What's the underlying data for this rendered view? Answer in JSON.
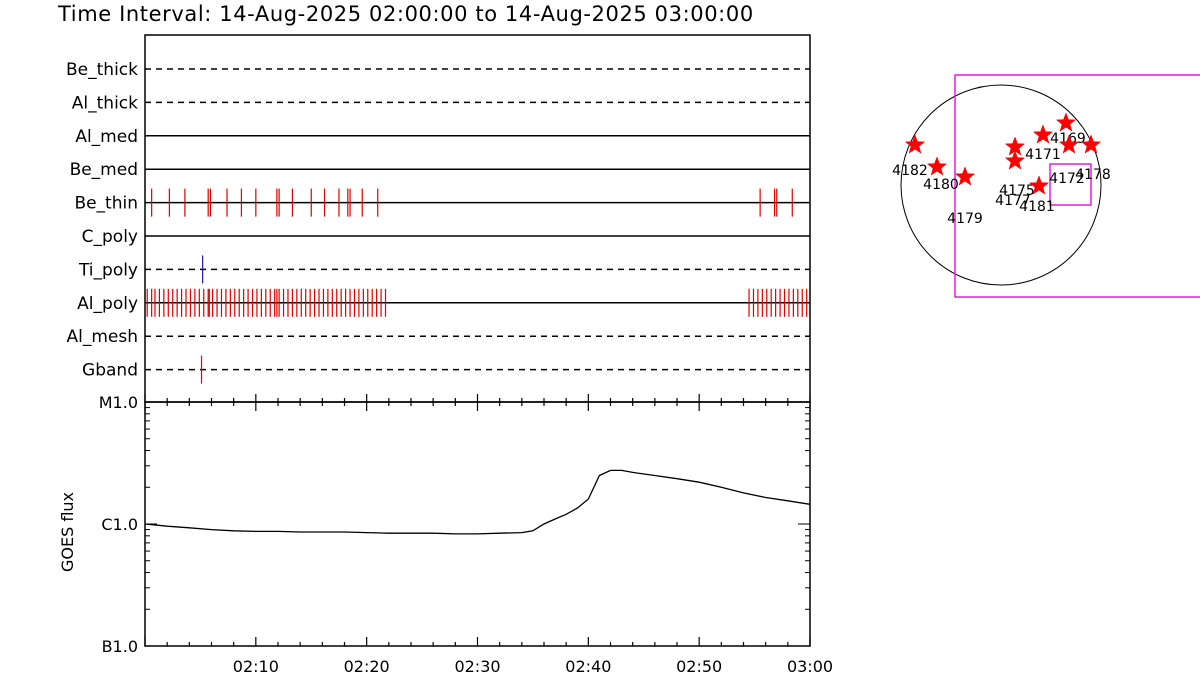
{
  "title": "Time Interval: 14-Aug-2025 02:00:00 to 14-Aug-2025 03:00:00",
  "colors": {
    "axes": "#000000",
    "event_red": "#dd0000",
    "event_blue": "#1a1ab0",
    "fov_magenta": "#e020e0",
    "star": "#ff0000"
  },
  "chart_data": [
    {
      "type": "event-raster",
      "title": "",
      "x_range_minutes": [
        0,
        60
      ],
      "x_start": "02:00",
      "x_end": "03:00",
      "filters": [
        {
          "name": "Be_thick",
          "line": "dashed",
          "events": []
        },
        {
          "name": "Al_thick",
          "line": "dashed",
          "events": []
        },
        {
          "name": "Al_med",
          "line": "solid",
          "events": []
        },
        {
          "name": "Be_med",
          "line": "solid",
          "events": []
        },
        {
          "name": "Be_thin",
          "line": "solid",
          "color": "red",
          "events": [
            0.6,
            2.2,
            3.6,
            5.7,
            5.9,
            7.4,
            8.7,
            10.0,
            11.9,
            12.1,
            13.3,
            15.0,
            16.2,
            17.5,
            18.3,
            18.5,
            19.6,
            21.0,
            55.5,
            56.8,
            57.0,
            58.4
          ]
        },
        {
          "name": "C_poly",
          "line": "solid",
          "events": []
        },
        {
          "name": "Ti_poly",
          "line": "dashed",
          "color": "blue",
          "events": [
            5.2
          ]
        },
        {
          "name": "Al_poly",
          "line": "solid",
          "color": "red",
          "events": [
            0.2,
            0.6,
            0.9,
            1.3,
            1.7,
            2.1,
            2.5,
            2.9,
            3.3,
            3.7,
            4.1,
            4.5,
            4.9,
            5.3,
            5.7,
            5.8,
            6.1,
            6.5,
            6.9,
            7.3,
            7.7,
            8.1,
            8.5,
            8.9,
            9.3,
            9.7,
            10.1,
            10.5,
            10.9,
            11.3,
            11.7,
            11.9,
            12.1,
            12.5,
            12.9,
            13.3,
            13.7,
            14.1,
            14.5,
            14.9,
            15.3,
            15.7,
            16.1,
            16.5,
            16.9,
            17.3,
            17.7,
            18.1,
            18.5,
            18.9,
            19.3,
            19.7,
            20.1,
            20.5,
            20.9,
            21.3,
            21.7,
            54.5,
            54.9,
            55.3,
            55.7,
            56.1,
            56.5,
            56.9,
            57.3,
            57.7,
            58.1,
            58.5,
            58.9,
            59.3,
            59.7
          ]
        },
        {
          "name": "Al_mesh",
          "line": "dashed",
          "events": []
        },
        {
          "name": "Gband",
          "line": "dashed",
          "color": "red",
          "events": [
            5.1
          ]
        }
      ]
    },
    {
      "type": "line",
      "title": "",
      "ylabel": "GOES flux",
      "ylog": true,
      "yticks": [
        {
          "label": "B1.0",
          "value": 1e-07
        },
        {
          "label": "C1.0",
          "value": 1e-06
        },
        {
          "label": "M1.0",
          "value": 1e-05
        }
      ],
      "ylim": [
        1e-07,
        1e-05
      ],
      "x_range_minutes": [
        0,
        60
      ],
      "xtick_labels": [
        {
          "minute": 10,
          "label": "02:10"
        },
        {
          "minute": 20,
          "label": "02:20"
        },
        {
          "minute": 30,
          "label": "02:30"
        },
        {
          "minute": 40,
          "label": "02:40"
        },
        {
          "minute": 50,
          "label": "02:50"
        },
        {
          "minute": 60,
          "label": "03:00"
        }
      ],
      "series": [
        {
          "x": [
            0,
            2,
            4,
            6,
            8,
            10,
            12,
            14,
            16,
            18,
            20,
            22,
            24,
            26,
            28,
            30,
            32,
            34,
            35,
            36,
            37,
            38,
            39,
            40,
            41,
            42,
            43,
            44,
            46,
            48,
            50,
            52,
            54,
            56,
            58,
            60
          ],
          "y": [
            1e-06,
            9.6e-07,
            9.3e-07,
            9e-07,
            8.8e-07,
            8.7e-07,
            8.7e-07,
            8.6e-07,
            8.6e-07,
            8.6e-07,
            8.5e-07,
            8.4e-07,
            8.4e-07,
            8.4e-07,
            8.3e-07,
            8.3e-07,
            8.4e-07,
            8.5e-07,
            8.8e-07,
            1e-06,
            1.1e-06,
            1.2e-06,
            1.35e-06,
            1.6e-06,
            2.5e-06,
            2.75e-06,
            2.75e-06,
            2.65e-06,
            2.5e-06,
            2.35e-06,
            2.2e-06,
            2e-06,
            1.8e-06,
            1.65e-06,
            1.55e-06,
            1.45e-06
          ]
        }
      ]
    }
  ],
  "disk_map": {
    "regions": [
      {
        "label": "4182",
        "star": [
          -0.86,
          -0.4
        ],
        "text": [
          -0.91,
          -0.1
        ]
      },
      {
        "label": "4180",
        "star": [
          -0.64,
          -0.18
        ],
        "text": [
          -0.6,
          0.04
        ]
      },
      {
        "label": "4179",
        "star": [
          -0.36,
          -0.08
        ],
        "text": [
          -0.36,
          0.38
        ]
      },
      {
        "label": "4175",
        "star": [
          0.14,
          -0.38
        ],
        "text": [
          0.16,
          0.1
        ]
      },
      {
        "label": "4177",
        "star": [
          0.14,
          -0.24
        ],
        "text": [
          0.12,
          0.2
        ]
      },
      {
        "label": "4171",
        "star": [
          0.42,
          -0.5
        ],
        "text": [
          0.42,
          -0.26
        ]
      },
      {
        "label": "4169",
        "star": [
          0.65,
          -0.62
        ],
        "text": [
          0.67,
          -0.42
        ]
      },
      {
        "label": "4172",
        "star": [
          0.68,
          -0.4
        ],
        "text": [
          0.66,
          -0.02
        ]
      },
      {
        "label": "4178",
        "star": [
          0.9,
          -0.4
        ],
        "text": [
          0.92,
          -0.06
        ]
      },
      {
        "label": "4181",
        "star": [
          0.38,
          0.01
        ],
        "text": [
          0.36,
          0.26
        ]
      }
    ]
  }
}
